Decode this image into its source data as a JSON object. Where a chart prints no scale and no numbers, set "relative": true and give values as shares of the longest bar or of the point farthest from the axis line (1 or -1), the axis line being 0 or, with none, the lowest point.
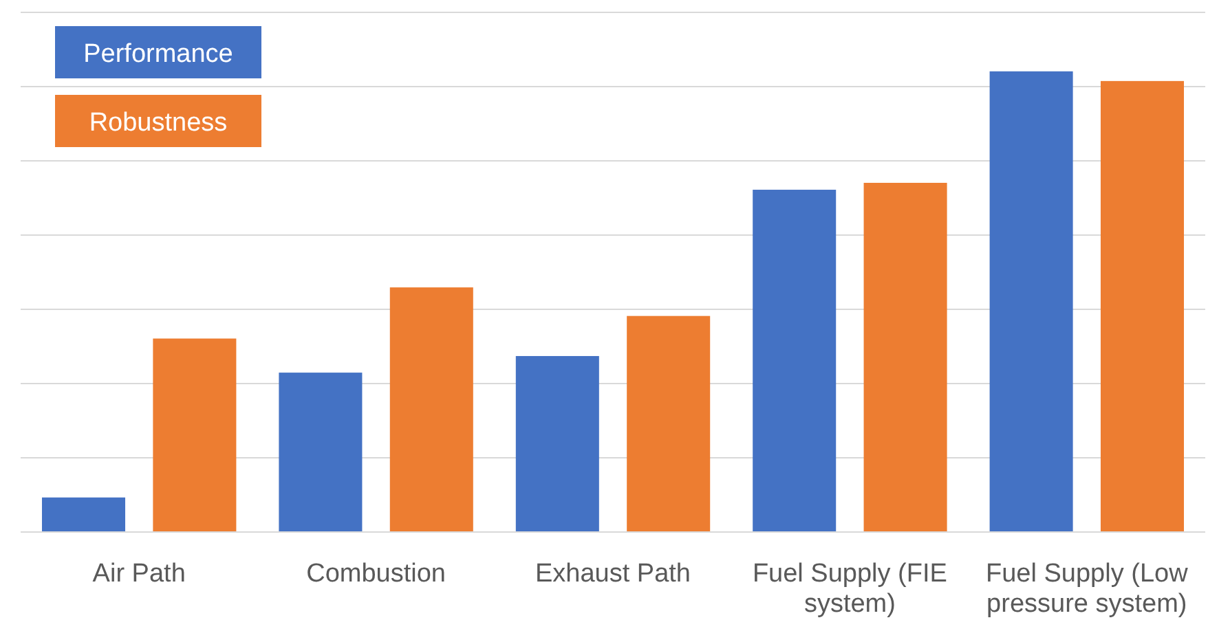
{
  "chart_data": {
    "type": "bar",
    "relative": true,
    "grid": "y",
    "legend": "top left",
    "categories": [
      "Air Path",
      "Combustion",
      "Exhaust Path",
      "Fuel Supply (FIE system)",
      "Fuel Supply (Low pressure system)"
    ],
    "series": [
      {
        "name": "Performance",
        "color": "#4472c4",
        "values": [
          0.075,
          0.346,
          0.382,
          0.743,
          1
        ]
      },
      {
        "name": "Robustness",
        "color": "#ed7d31",
        "values": [
          0.42,
          0.531,
          0.469,
          0.758,
          0.979
        ]
      }
    ]
  }
}
